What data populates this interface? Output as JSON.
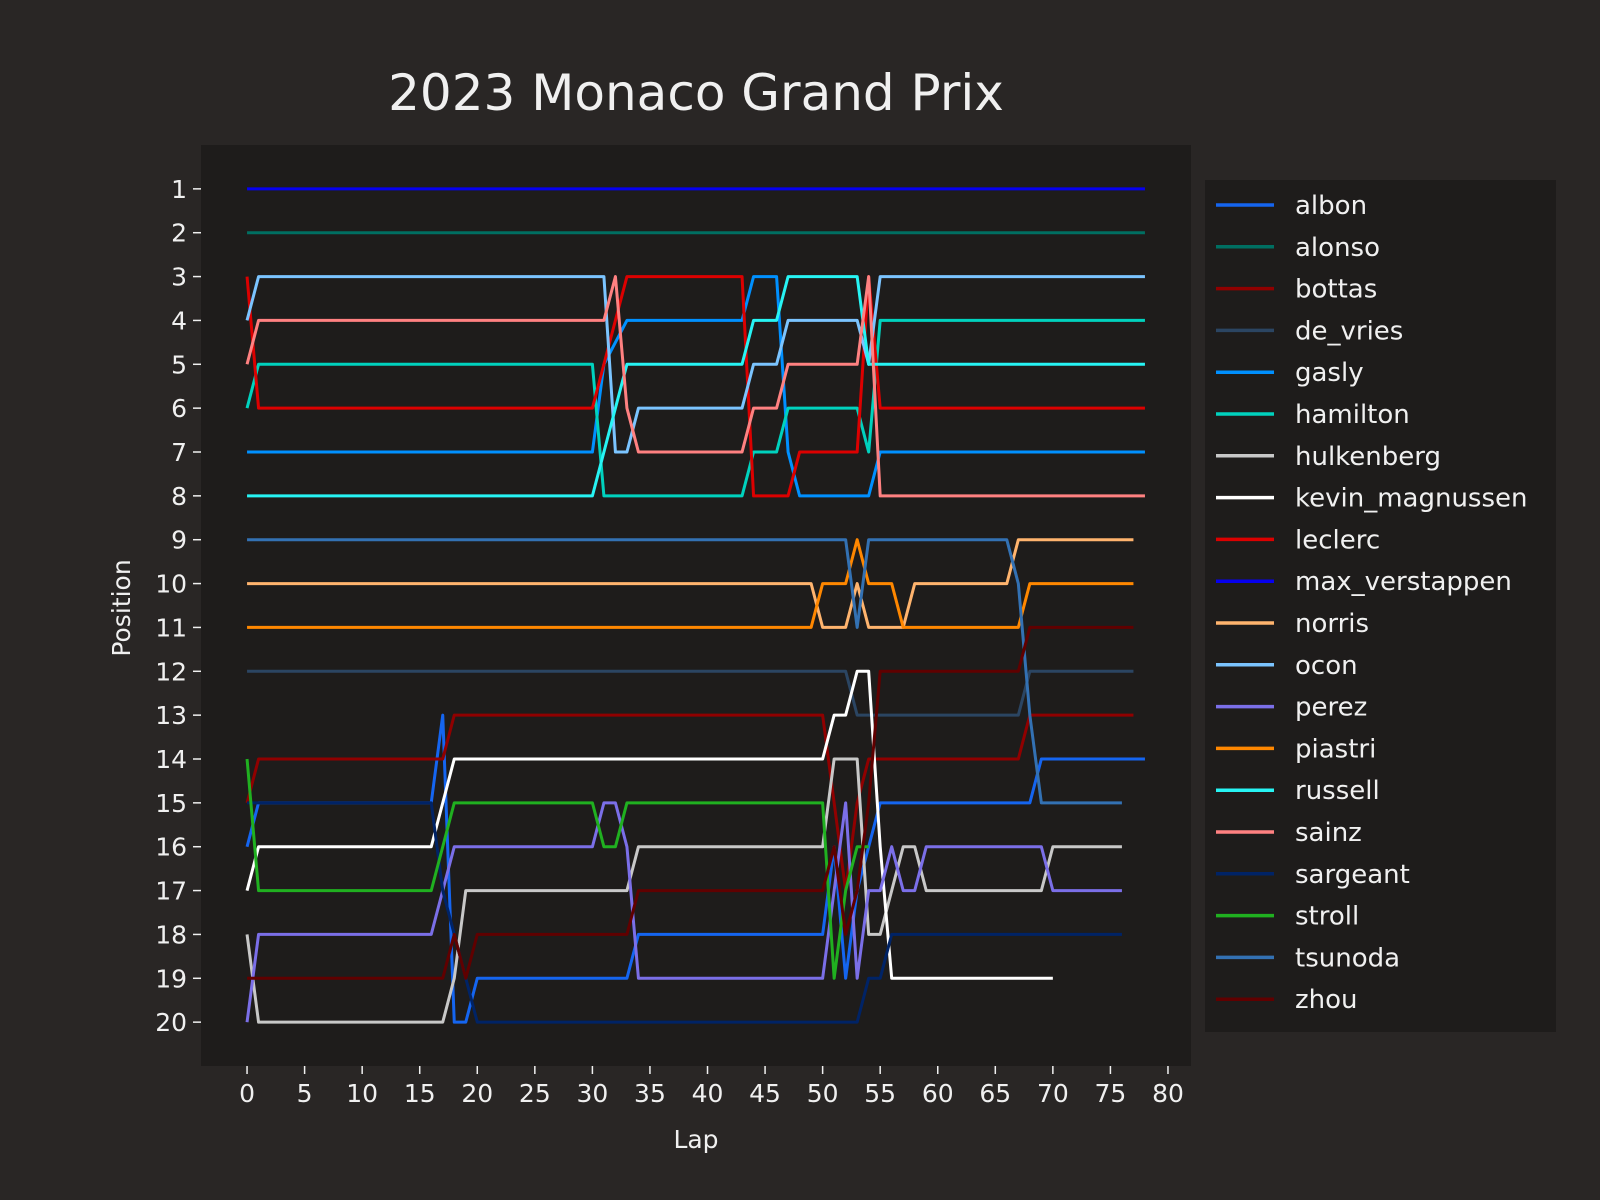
{
  "chart_data": {
    "type": "line",
    "title": "2023 Monaco Grand Prix",
    "xlabel": "Lap",
    "ylabel": "Position",
    "xlim": [
      -4,
      82
    ],
    "ylim": [
      21,
      0
    ],
    "xticks": [
      0,
      5,
      10,
      15,
      20,
      25,
      30,
      35,
      40,
      45,
      50,
      55,
      60,
      65,
      70,
      75,
      80
    ],
    "yticks": [
      1,
      2,
      3,
      4,
      5,
      6,
      7,
      8,
      9,
      10,
      11,
      12,
      13,
      14,
      15,
      16,
      17,
      18,
      19,
      20
    ],
    "grid": false,
    "legend_position": "right",
    "colors": {
      "figure_background": "#292625",
      "axes_background": "#1e1c1b",
      "text": "#f0f0f0"
    },
    "series": [
      {
        "name": "albon",
        "color": "#1565f0",
        "points": [
          [
            0,
            16
          ],
          [
            1,
            15
          ],
          [
            16,
            15
          ],
          [
            17,
            13
          ],
          [
            18,
            20
          ],
          [
            19,
            20
          ],
          [
            20,
            19
          ],
          [
            33,
            19
          ],
          [
            34,
            18
          ],
          [
            50,
            18
          ],
          [
            51,
            16
          ],
          [
            52,
            19
          ],
          [
            53,
            17
          ],
          [
            54,
            16
          ],
          [
            55,
            15
          ],
          [
            68,
            15
          ],
          [
            69,
            14
          ],
          [
            78,
            14
          ]
        ]
      },
      {
        "name": "alonso",
        "color": "#006f62",
        "points": [
          [
            0,
            2
          ],
          [
            78,
            2
          ]
        ]
      },
      {
        "name": "bottas",
        "color": "#900000",
        "points": [
          [
            0,
            15
          ],
          [
            1,
            14
          ],
          [
            17,
            14
          ],
          [
            18,
            13
          ],
          [
            50,
            13
          ],
          [
            51,
            15
          ],
          [
            52,
            17
          ],
          [
            53,
            15
          ],
          [
            54,
            14
          ],
          [
            55,
            14
          ],
          [
            67,
            14
          ],
          [
            68,
            13
          ],
          [
            77,
            13
          ]
        ]
      },
      {
        "name": "de_vries",
        "color": "#2b4562",
        "points": [
          [
            0,
            12
          ],
          [
            52,
            12
          ],
          [
            53,
            13
          ],
          [
            67,
            13
          ],
          [
            68,
            12
          ],
          [
            77,
            12
          ]
        ]
      },
      {
        "name": "gasly",
        "color": "#0090ff",
        "points": [
          [
            0,
            7
          ],
          [
            30,
            7
          ],
          [
            31,
            5
          ],
          [
            33,
            4
          ],
          [
            43,
            4
          ],
          [
            44,
            3
          ],
          [
            46,
            3
          ],
          [
            47,
            7
          ],
          [
            48,
            8
          ],
          [
            54,
            8
          ],
          [
            55,
            7
          ],
          [
            78,
            7
          ]
        ]
      },
      {
        "name": "hamilton",
        "color": "#00d2be",
        "points": [
          [
            0,
            6
          ],
          [
            1,
            5
          ],
          [
            30,
            5
          ],
          [
            31,
            8
          ],
          [
            43,
            8
          ],
          [
            44,
            7
          ],
          [
            46,
            7
          ],
          [
            47,
            6
          ],
          [
            53,
            6
          ],
          [
            54,
            7
          ],
          [
            55,
            4
          ],
          [
            78,
            4
          ]
        ]
      },
      {
        "name": "hulkenberg",
        "color": "#c8c8c8",
        "points": [
          [
            0,
            18
          ],
          [
            1,
            20
          ],
          [
            17,
            20
          ],
          [
            18,
            19
          ],
          [
            19,
            17
          ],
          [
            33,
            17
          ],
          [
            34,
            16
          ],
          [
            50,
            16
          ],
          [
            51,
            14
          ],
          [
            53,
            14
          ],
          [
            54,
            18
          ],
          [
            55,
            18
          ],
          [
            56,
            17
          ],
          [
            57,
            16
          ],
          [
            58,
            16
          ],
          [
            59,
            17
          ],
          [
            69,
            17
          ],
          [
            70,
            16
          ],
          [
            76,
            16
          ]
        ]
      },
      {
        "name": "kevin_magnussen",
        "color": "#ffffff",
        "points": [
          [
            0,
            17
          ],
          [
            1,
            16
          ],
          [
            16,
            16
          ],
          [
            17,
            15
          ],
          [
            18,
            14
          ],
          [
            50,
            14
          ],
          [
            51,
            13
          ],
          [
            52,
            13
          ],
          [
            53,
            12
          ],
          [
            54,
            12
          ],
          [
            55,
            16
          ],
          [
            56,
            19
          ],
          [
            70,
            19
          ]
        ]
      },
      {
        "name": "leclerc",
        "color": "#dc0000",
        "points": [
          [
            0,
            3
          ],
          [
            1,
            6
          ],
          [
            30,
            6
          ],
          [
            31,
            5
          ],
          [
            32,
            4
          ],
          [
            33,
            3
          ],
          [
            43,
            3
          ],
          [
            44,
            8
          ],
          [
            47,
            8
          ],
          [
            48,
            7
          ],
          [
            53,
            7
          ],
          [
            54,
            3
          ],
          [
            55,
            6
          ],
          [
            78,
            6
          ]
        ]
      },
      {
        "name": "max_verstappen",
        "color": "#0600ef",
        "points": [
          [
            0,
            1
          ],
          [
            78,
            1
          ]
        ]
      },
      {
        "name": "norris",
        "color": "#ffb46e",
        "points": [
          [
            0,
            10
          ],
          [
            49,
            10
          ],
          [
            50,
            11
          ],
          [
            52,
            11
          ],
          [
            53,
            10
          ],
          [
            54,
            11
          ],
          [
            57,
            11
          ],
          [
            58,
            10
          ],
          [
            66,
            10
          ],
          [
            67,
            9
          ],
          [
            77,
            9
          ]
        ]
      },
      {
        "name": "ocon",
        "color": "#7bc4ff",
        "points": [
          [
            0,
            4
          ],
          [
            1,
            3
          ],
          [
            31,
            3
          ],
          [
            32,
            7
          ],
          [
            33,
            7
          ],
          [
            34,
            6
          ],
          [
            43,
            6
          ],
          [
            44,
            5
          ],
          [
            46,
            5
          ],
          [
            47,
            4
          ],
          [
            53,
            4
          ],
          [
            54,
            5
          ],
          [
            55,
            3
          ],
          [
            78,
            3
          ]
        ]
      },
      {
        "name": "perez",
        "color": "#7b6fe8",
        "points": [
          [
            0,
            20
          ],
          [
            1,
            18
          ],
          [
            16,
            18
          ],
          [
            17,
            17
          ],
          [
            18,
            16
          ],
          [
            30,
            16
          ],
          [
            31,
            15
          ],
          [
            32,
            15
          ],
          [
            33,
            16
          ],
          [
            34,
            19
          ],
          [
            50,
            19
          ],
          [
            51,
            17
          ],
          [
            52,
            15
          ],
          [
            53,
            19
          ],
          [
            54,
            17
          ],
          [
            55,
            17
          ],
          [
            56,
            16
          ],
          [
            57,
            17
          ],
          [
            58,
            17
          ],
          [
            59,
            16
          ],
          [
            69,
            16
          ],
          [
            70,
            17
          ],
          [
            76,
            17
          ]
        ]
      },
      {
        "name": "piastri",
        "color": "#ff8700",
        "points": [
          [
            0,
            11
          ],
          [
            49,
            11
          ],
          [
            50,
            10
          ],
          [
            52,
            10
          ],
          [
            53,
            9
          ],
          [
            54,
            10
          ],
          [
            56,
            10
          ],
          [
            57,
            11
          ],
          [
            67,
            11
          ],
          [
            68,
            10
          ],
          [
            77,
            10
          ]
        ]
      },
      {
        "name": "russell",
        "color": "#27f4f4",
        "points": [
          [
            0,
            8
          ],
          [
            30,
            8
          ],
          [
            31,
            7
          ],
          [
            32,
            6
          ],
          [
            33,
            5
          ],
          [
            43,
            5
          ],
          [
            44,
            4
          ],
          [
            46,
            4
          ],
          [
            47,
            3
          ],
          [
            53,
            3
          ],
          [
            54,
            5
          ],
          [
            78,
            5
          ]
        ]
      },
      {
        "name": "sainz",
        "color": "#ff8181",
        "points": [
          [
            0,
            5
          ],
          [
            1,
            4
          ],
          [
            31,
            4
          ],
          [
            32,
            3
          ],
          [
            33,
            6
          ],
          [
            34,
            7
          ],
          [
            43,
            7
          ],
          [
            44,
            6
          ],
          [
            46,
            6
          ],
          [
            47,
            5
          ],
          [
            53,
            5
          ],
          [
            54,
            3
          ],
          [
            55,
            8
          ],
          [
            78,
            8
          ]
        ]
      },
      {
        "name": "sargeant",
        "color": "#002366",
        "points": [
          [
            0,
            15
          ],
          [
            16,
            15
          ],
          [
            17,
            17
          ],
          [
            18,
            18
          ],
          [
            19,
            19
          ],
          [
            20,
            20
          ],
          [
            53,
            20
          ],
          [
            54,
            19
          ],
          [
            55,
            19
          ],
          [
            56,
            18
          ],
          [
            76,
            18
          ]
        ]
      },
      {
        "name": "stroll",
        "color": "#20b020",
        "points": [
          [
            0,
            14
          ],
          [
            1,
            17
          ],
          [
            16,
            17
          ],
          [
            17,
            16
          ],
          [
            18,
            15
          ],
          [
            30,
            15
          ],
          [
            31,
            16
          ],
          [
            32,
            16
          ],
          [
            33,
            15
          ],
          [
            50,
            15
          ],
          [
            51,
            19
          ],
          [
            52,
            17
          ],
          [
            53,
            16
          ],
          [
            54,
            16
          ]
        ]
      },
      {
        "name": "tsunoda",
        "color": "#3371b3",
        "points": [
          [
            0,
            9
          ],
          [
            52,
            9
          ],
          [
            53,
            11
          ],
          [
            54,
            9
          ],
          [
            66,
            9
          ],
          [
            67,
            10
          ],
          [
            68,
            13
          ],
          [
            69,
            15
          ],
          [
            76,
            15
          ]
        ]
      },
      {
        "name": "zhou",
        "color": "#600000",
        "points": [
          [
            0,
            19
          ],
          [
            17,
            19
          ],
          [
            18,
            18
          ],
          [
            19,
            19
          ],
          [
            20,
            18
          ],
          [
            33,
            18
          ],
          [
            34,
            17
          ],
          [
            50,
            17
          ],
          [
            51,
            16
          ],
          [
            52,
            18
          ],
          [
            53,
            17
          ],
          [
            54,
            15
          ],
          [
            55,
            12
          ],
          [
            67,
            12
          ],
          [
            68,
            11
          ],
          [
            77,
            11
          ]
        ]
      }
    ]
  }
}
